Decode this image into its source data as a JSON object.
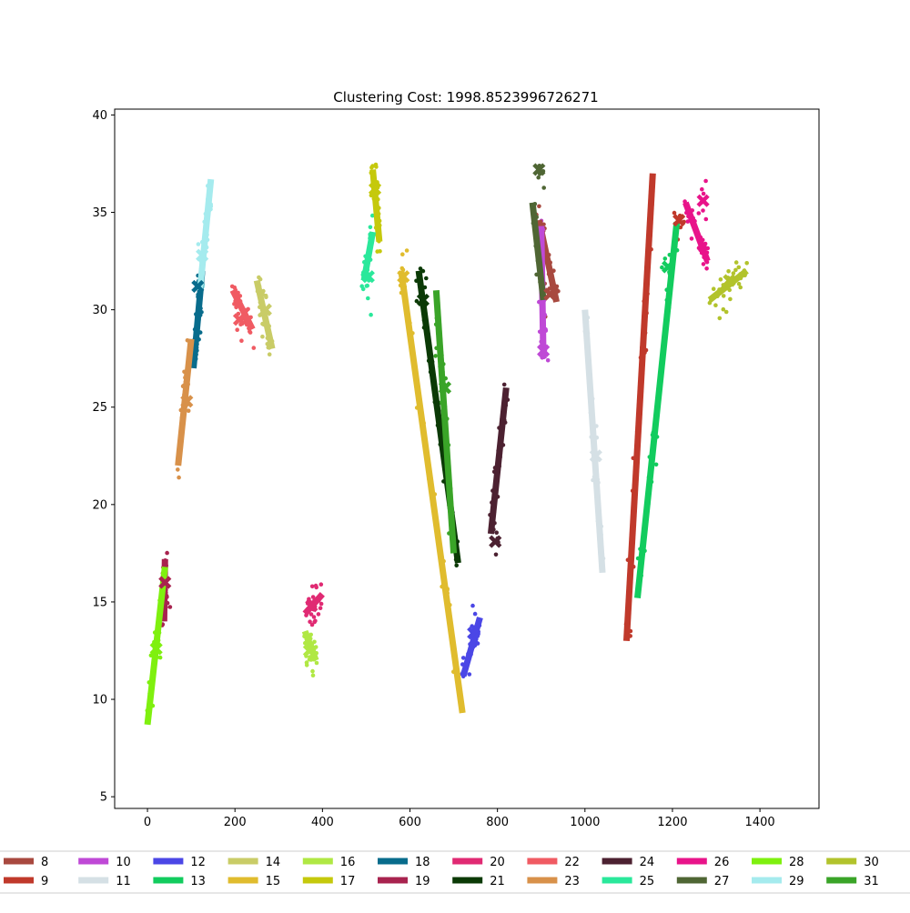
{
  "chart_data": {
    "type": "scatter",
    "title": "Clustering Cost: 1998.8523996726271",
    "xlabel": "",
    "ylabel": "",
    "xlim": [
      -75,
      1535
    ],
    "ylim": [
      4.4,
      40.3
    ],
    "xticks": [
      0,
      200,
      400,
      600,
      800,
      1000,
      1200,
      1400
    ],
    "yticks": [
      5,
      10,
      15,
      20,
      25,
      30,
      35,
      40
    ],
    "grid": false,
    "legend_position": "bottom",
    "series": [
      {
        "name": "8",
        "color": "#a8493f",
        "segment": [
          [
            895,
            34.6
          ],
          [
            935,
            30.4
          ]
        ],
        "center": [
          920,
          30.8
        ]
      },
      {
        "name": "9",
        "color": "#c0392b",
        "segment": [
          [
            1095,
            13.0
          ],
          [
            1155,
            37.0
          ]
        ],
        "center": [
          1215,
          34.6
        ]
      },
      {
        "name": "10",
        "color": "#bf49d6",
        "segment": [
          [
            900,
            34.3
          ],
          [
            905,
            27.5
          ]
        ],
        "center": [
          905,
          27.9
        ]
      },
      {
        "name": "11",
        "color": "#d5e0e5",
        "segment": [
          [
            1000,
            30.0
          ],
          [
            1040,
            16.5
          ]
        ],
        "center": [
          1025,
          22.5
        ]
      },
      {
        "name": "12",
        "color": "#4b47e6",
        "segment": [
          [
            722,
            11.2
          ],
          [
            760,
            14.2
          ]
        ],
        "center": [
          745,
          13.4
        ]
      },
      {
        "name": "13",
        "color": "#12cc5e",
        "segment": [
          [
            1120,
            15.2
          ],
          [
            1210,
            34.5
          ]
        ],
        "center": [
          1190,
          32.2
        ]
      },
      {
        "name": "14",
        "color": "#c9cc67",
        "segment": [
          [
            250,
            31.5
          ],
          [
            285,
            28.0
          ]
        ],
        "center": [
          270,
          30.0
        ]
      },
      {
        "name": "15",
        "color": "#e0bc2e",
        "segment": [
          [
            580,
            32.0
          ],
          [
            720,
            9.3
          ]
        ],
        "center": [
          585,
          31.7
        ]
      },
      {
        "name": "16",
        "color": "#b0e844",
        "segment": [
          [
            360,
            13.5
          ],
          [
            385,
            12.0
          ]
        ],
        "center": [
          370,
          12.5
        ]
      },
      {
        "name": "17",
        "color": "#c5c90c",
        "segment": [
          [
            515,
            37.2
          ],
          [
            530,
            33.5
          ]
        ],
        "center": [
          520,
          36.2
        ]
      },
      {
        "name": "18",
        "color": "#086c8c",
        "segment": [
          [
            105,
            27.0
          ],
          [
            125,
            32.0
          ]
        ],
        "center": [
          115,
          31.2
        ]
      },
      {
        "name": "19",
        "color": "#a8234f",
        "segment": [
          [
            40,
            17.2
          ],
          [
            38,
            14.0
          ]
        ],
        "center": [
          40,
          16.0
        ]
      },
      {
        "name": "20",
        "color": "#e02a73",
        "segment": [
          [
            360,
            14.4
          ],
          [
            400,
            15.4
          ]
        ],
        "center": [
          375,
          14.8
        ]
      },
      {
        "name": "21",
        "color": "#0b3a06",
        "segment": [
          [
            620,
            32.0
          ],
          [
            710,
            17.0
          ]
        ],
        "center": [
          630,
          30.5
        ]
      },
      {
        "name": "22",
        "color": "#f05b63",
        "segment": [
          [
            195,
            31.0
          ],
          [
            240,
            29.0
          ]
        ],
        "center": [
          210,
          29.5
        ]
      },
      {
        "name": "23",
        "color": "#d8914a",
        "segment": [
          [
            70,
            22.0
          ],
          [
            100,
            28.5
          ]
        ],
        "center": [
          90,
          25.3
        ]
      },
      {
        "name": "24",
        "color": "#4c2131",
        "segment": [
          [
            785,
            18.5
          ],
          [
            820,
            26.0
          ]
        ],
        "center": [
          795,
          18.1
        ]
      },
      {
        "name": "25",
        "color": "#2ae89b",
        "segment": [
          [
            495,
            31.5
          ],
          [
            515,
            34.0
          ]
        ],
        "center": [
          505,
          31.7
        ]
      },
      {
        "name": "26",
        "color": "#e8148a",
        "segment": [
          [
            1230,
            35.5
          ],
          [
            1280,
            32.5
          ]
        ],
        "center": [
          1270,
          35.6
        ]
      },
      {
        "name": "27",
        "color": "#4f6634",
        "segment": [
          [
            880,
            35.5
          ],
          [
            905,
            30.5
          ]
        ],
        "center": [
          895,
          37.2
        ]
      },
      {
        "name": "28",
        "color": "#7ff00f",
        "segment": [
          [
            0,
            8.7
          ],
          [
            40,
            16.8
          ]
        ],
        "center": [
          20,
          12.6
        ]
      },
      {
        "name": "29",
        "color": "#a5ebee",
        "segment": [
          [
            120,
            31.0
          ],
          [
            145,
            36.7
          ]
        ],
        "center": [
          125,
          32.8
        ]
      },
      {
        "name": "30",
        "color": "#b2c32c",
        "segment": [
          [
            1285,
            30.5
          ],
          [
            1370,
            32.0
          ]
        ],
        "center": [
          1330,
          31.5
        ]
      },
      {
        "name": "31",
        "color": "#3aa428",
        "segment": [
          [
            660,
            31.0
          ],
          [
            700,
            17.5
          ]
        ],
        "center": [
          680,
          26.0
        ]
      }
    ]
  }
}
